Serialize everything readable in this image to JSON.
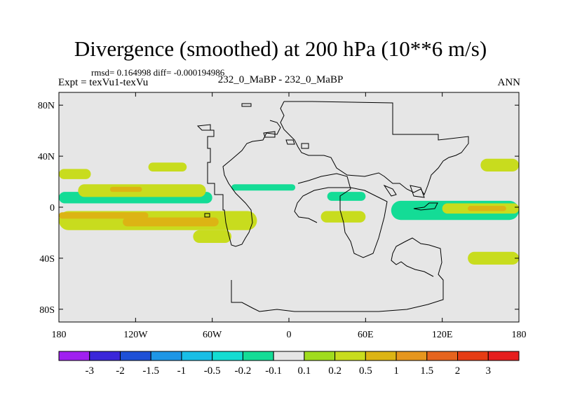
{
  "chart_data": {
    "type": "heatmap",
    "title": "Divergence (smoothed) at 200 hPa (10**6 m/s)",
    "stats": "rmsd= 0.164998  diff= -0.000194986",
    "experiment": "Expt = texVu1-texVu",
    "case": "232_0_MaBP - 232_0_MaBP",
    "season": "ANN",
    "x_axis": {
      "ticks": [
        "180",
        "120W",
        "60W",
        "0",
        "60E",
        "120E",
        "180"
      ],
      "range": [
        -180,
        180
      ],
      "values": [
        -180,
        -120,
        -60,
        0,
        60,
        120,
        180
      ]
    },
    "y_axis": {
      "ticks": [
        "80N",
        "40N",
        "0",
        "40S",
        "80S"
      ],
      "range": [
        -90,
        90
      ],
      "values": [
        80,
        40,
        0,
        -40,
        -80
      ]
    },
    "colorbar": {
      "labels": [
        "-3",
        "-2",
        "-1.5",
        "-1",
        "-0.5",
        "-0.2",
        "-0.1",
        "0.1",
        "0.2",
        "0.5",
        "1",
        "1.5",
        "2",
        "3"
      ],
      "colors": [
        "#a020f0",
        "#3a26d9",
        "#1e50d6",
        "#1e96e6",
        "#19bee6",
        "#14dcd2",
        "#14dc96",
        "#e6e6e6",
        "#a0dc1e",
        "#c8dc1e",
        "#dcb414",
        "#e6961e",
        "#e6641e",
        "#e63c14",
        "#e61e1e"
      ]
    },
    "contour_regions": [
      {
        "level": 0.2,
        "lon_min": -180,
        "lon_max": -25,
        "lat_min": -18,
        "lat_max": -3
      },
      {
        "level": 0.5,
        "lon_min": -180,
        "lon_max": -110,
        "lat_min": -9,
        "lat_max": -4
      },
      {
        "level": 0.5,
        "lon_min": -130,
        "lon_max": -55,
        "lat_min": -15,
        "lat_max": -8
      },
      {
        "level": -0.2,
        "lon_min": -180,
        "lon_max": -60,
        "lat_min": 3,
        "lat_max": 12
      },
      {
        "level": -0.2,
        "lon_min": -45,
        "lon_max": 5,
        "lat_min": 13,
        "lat_max": 18
      },
      {
        "level": -0.2,
        "lon_min": 80,
        "lon_max": 180,
        "lat_min": -10,
        "lat_max": 5
      },
      {
        "level": 0.2,
        "lon_min": -165,
        "lon_max": -65,
        "lat_min": 8,
        "lat_max": 18
      },
      {
        "level": 0.5,
        "lon_min": -140,
        "lon_max": -115,
        "lat_min": 12,
        "lat_max": 16
      },
      {
        "level": 0.2,
        "lon_min": -180,
        "lon_max": -155,
        "lat_min": 22,
        "lat_max": 30
      },
      {
        "level": 0.2,
        "lon_min": -110,
        "lon_max": -80,
        "lat_min": 28,
        "lat_max": 35
      },
      {
        "level": 0.2,
        "lon_min": 120,
        "lon_max": 180,
        "lat_min": -5,
        "lat_max": 3
      },
      {
        "level": 0.5,
        "lon_min": 140,
        "lon_max": 170,
        "lat_min": -3,
        "lat_max": 1
      },
      {
        "level": 0.2,
        "lon_min": 150,
        "lon_max": 180,
        "lat_min": 28,
        "lat_max": 38
      },
      {
        "level": 0.2,
        "lon_min": 25,
        "lon_max": 60,
        "lat_min": -12,
        "lat_max": -3
      },
      {
        "level": 0.2,
        "lon_min": -75,
        "lon_max": -45,
        "lat_min": -28,
        "lat_max": -18
      },
      {
        "level": 0.2,
        "lon_min": 140,
        "lon_max": 180,
        "lat_min": -45,
        "lat_max": -35
      },
      {
        "level": -0.2,
        "lon_min": 30,
        "lon_max": 60,
        "lat_min": 5,
        "lat_max": 12
      }
    ]
  }
}
